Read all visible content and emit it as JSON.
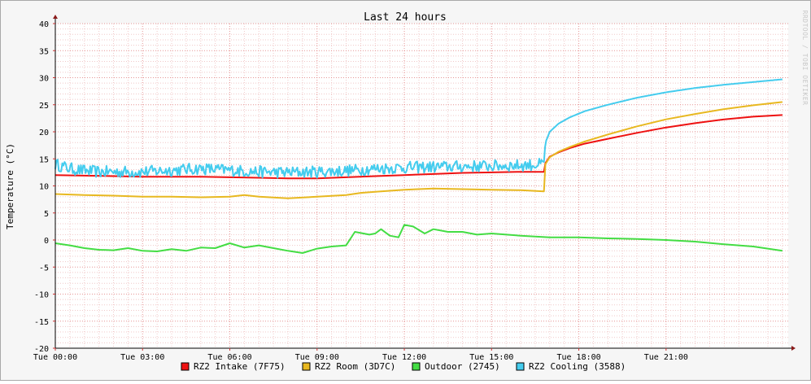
{
  "chart_data": {
    "type": "line",
    "title": "Last 24 hours",
    "ylabel": "Temperature (°C)",
    "xlabel": "",
    "watermark": "RRDTOOL / TOBI OETIKER",
    "ylim": [
      -20,
      40
    ],
    "xlim": [
      0,
      25.2
    ],
    "y_ticks": [
      -20,
      -15,
      -10,
      -5,
      0,
      5,
      10,
      15,
      20,
      25,
      30,
      35,
      40
    ],
    "x_ticks": [
      {
        "x": 0,
        "label": "Tue 00:00"
      },
      {
        "x": 3,
        "label": "Tue 03:00"
      },
      {
        "x": 6,
        "label": "Tue 06:00"
      },
      {
        "x": 9,
        "label": "Tue 09:00"
      },
      {
        "x": 12,
        "label": "Tue 12:00"
      },
      {
        "x": 15,
        "label": "Tue 15:00"
      },
      {
        "x": 18,
        "label": "Tue 18:00"
      },
      {
        "x": 21,
        "label": "Tue 21:00"
      }
    ],
    "grid": true,
    "legend_position": "bottom",
    "series": [
      {
        "name": "RZ2 Intake (7F75)",
        "color": "#ee1111",
        "x": [
          0,
          1,
          2,
          3,
          4,
          5,
          6,
          7,
          8,
          9,
          10,
          11,
          12,
          13,
          14,
          15,
          16,
          16.8,
          16.85,
          17,
          17.3,
          17.7,
          18.2,
          19,
          20,
          21,
          22,
          23,
          24,
          25
        ],
        "y": [
          12.0,
          11.9,
          11.8,
          11.7,
          11.7,
          11.7,
          11.6,
          11.5,
          11.4,
          11.4,
          11.6,
          11.8,
          12.0,
          12.2,
          12.4,
          12.5,
          12.6,
          12.6,
          14.2,
          15.4,
          16.2,
          17.0,
          17.8,
          18.7,
          19.8,
          20.8,
          21.6,
          22.3,
          22.8,
          23.1
        ]
      },
      {
        "name": "RZ2 Room (3D7C)",
        "color": "#e8b820",
        "x": [
          0,
          1,
          2,
          3,
          4,
          5,
          6,
          6.5,
          7,
          8,
          9,
          10,
          10.5,
          11,
          12,
          13,
          14,
          15,
          16,
          16.8,
          16.85,
          17,
          17.3,
          17.7,
          18.2,
          19,
          20,
          21,
          22,
          23,
          24,
          25
        ],
        "y": [
          8.5,
          8.3,
          8.2,
          8.0,
          8.0,
          7.9,
          8.0,
          8.3,
          8.0,
          7.7,
          8.0,
          8.3,
          8.7,
          8.9,
          9.3,
          9.5,
          9.4,
          9.3,
          9.2,
          9.0,
          14.0,
          15.3,
          16.3,
          17.2,
          18.2,
          19.5,
          21.0,
          22.3,
          23.3,
          24.2,
          24.9,
          25.5
        ]
      },
      {
        "name": "Outdoor (2745)",
        "color": "#44dd44",
        "x": [
          0,
          0.5,
          1,
          1.5,
          2,
          2.5,
          3,
          3.5,
          4,
          4.5,
          5,
          5.5,
          6,
          6.5,
          7,
          7.5,
          8,
          8.5,
          9,
          9.5,
          10,
          10.3,
          10.8,
          11,
          11.2,
          11.5,
          11.8,
          12,
          12.3,
          12.7,
          13,
          13.5,
          14,
          14.5,
          15,
          16,
          17,
          18,
          19,
          20,
          21,
          22,
          23,
          24,
          25
        ],
        "y": [
          -0.6,
          -1.0,
          -1.5,
          -1.8,
          -1.9,
          -1.5,
          -2.0,
          -2.1,
          -1.7,
          -2.0,
          -1.4,
          -1.5,
          -0.6,
          -1.4,
          -1.0,
          -1.5,
          -2.0,
          -2.4,
          -1.6,
          -1.2,
          -1.0,
          1.5,
          1.0,
          1.2,
          2.0,
          0.8,
          0.5,
          2.8,
          2.5,
          1.2,
          2.0,
          1.5,
          1.5,
          1.0,
          1.2,
          0.8,
          0.5,
          0.5,
          0.3,
          0.2,
          0.0,
          -0.3,
          -0.8,
          -1.2,
          -2.0
        ]
      },
      {
        "name": "RZ2 Cooling (3588)",
        "color": "#44ccee",
        "noise": 1.1,
        "x": [
          0,
          0.5,
          1,
          1.5,
          2,
          3,
          4,
          5,
          6,
          7,
          8,
          9,
          10,
          11,
          12,
          13,
          14,
          15,
          16,
          16.8,
          16.85,
          17,
          17.3,
          17.7,
          18.2,
          19,
          20,
          21,
          22,
          23,
          24,
          25
        ],
        "y": [
          14.0,
          13.2,
          12.8,
          12.6,
          12.6,
          12.6,
          12.9,
          13.2,
          12.9,
          12.6,
          12.5,
          12.6,
          12.8,
          13.2,
          13.4,
          13.5,
          13.6,
          13.7,
          13.8,
          14.0,
          18.0,
          20.0,
          21.5,
          22.7,
          23.8,
          25.0,
          26.3,
          27.3,
          28.1,
          28.7,
          29.2,
          29.7
        ]
      }
    ]
  }
}
